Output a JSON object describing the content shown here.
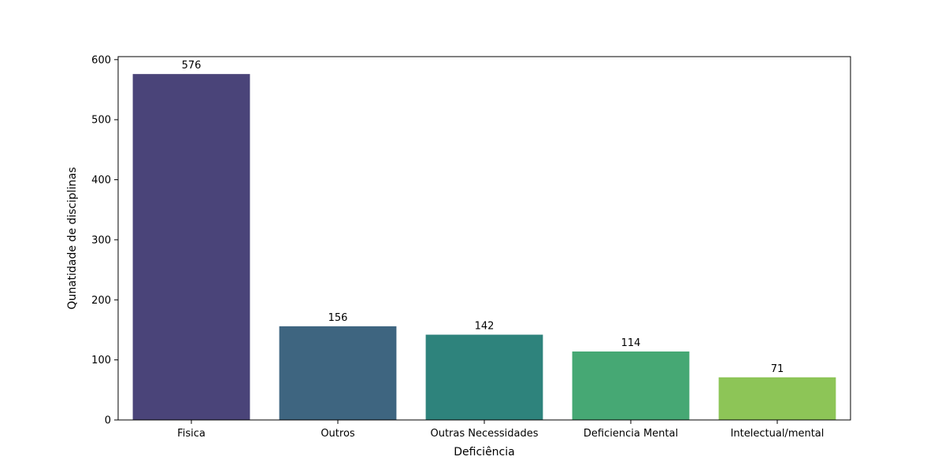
{
  "chart_data": {
    "type": "bar",
    "title": "",
    "xlabel": "Deficiência",
    "ylabel": "Qunatidade de disciplinas",
    "categories": [
      "Fisica",
      "Outros",
      "Outras Necessidades",
      "Deficiencia Mental",
      "Intelectual/mental"
    ],
    "values": [
      576,
      156,
      142,
      114,
      71
    ],
    "data_labels": [
      "576",
      "156",
      "142",
      "114",
      "71"
    ],
    "colors": [
      "#4a4479",
      "#3e6580",
      "#2e837c",
      "#46a874",
      "#8dc557"
    ],
    "ylim": [
      0,
      600
    ],
    "yticks": [
      0,
      100,
      200,
      300,
      400,
      500,
      600
    ],
    "ytick_labels": [
      "0",
      "100",
      "200",
      "300",
      "400",
      "500",
      "600"
    ],
    "grid": false,
    "legend": "none"
  }
}
